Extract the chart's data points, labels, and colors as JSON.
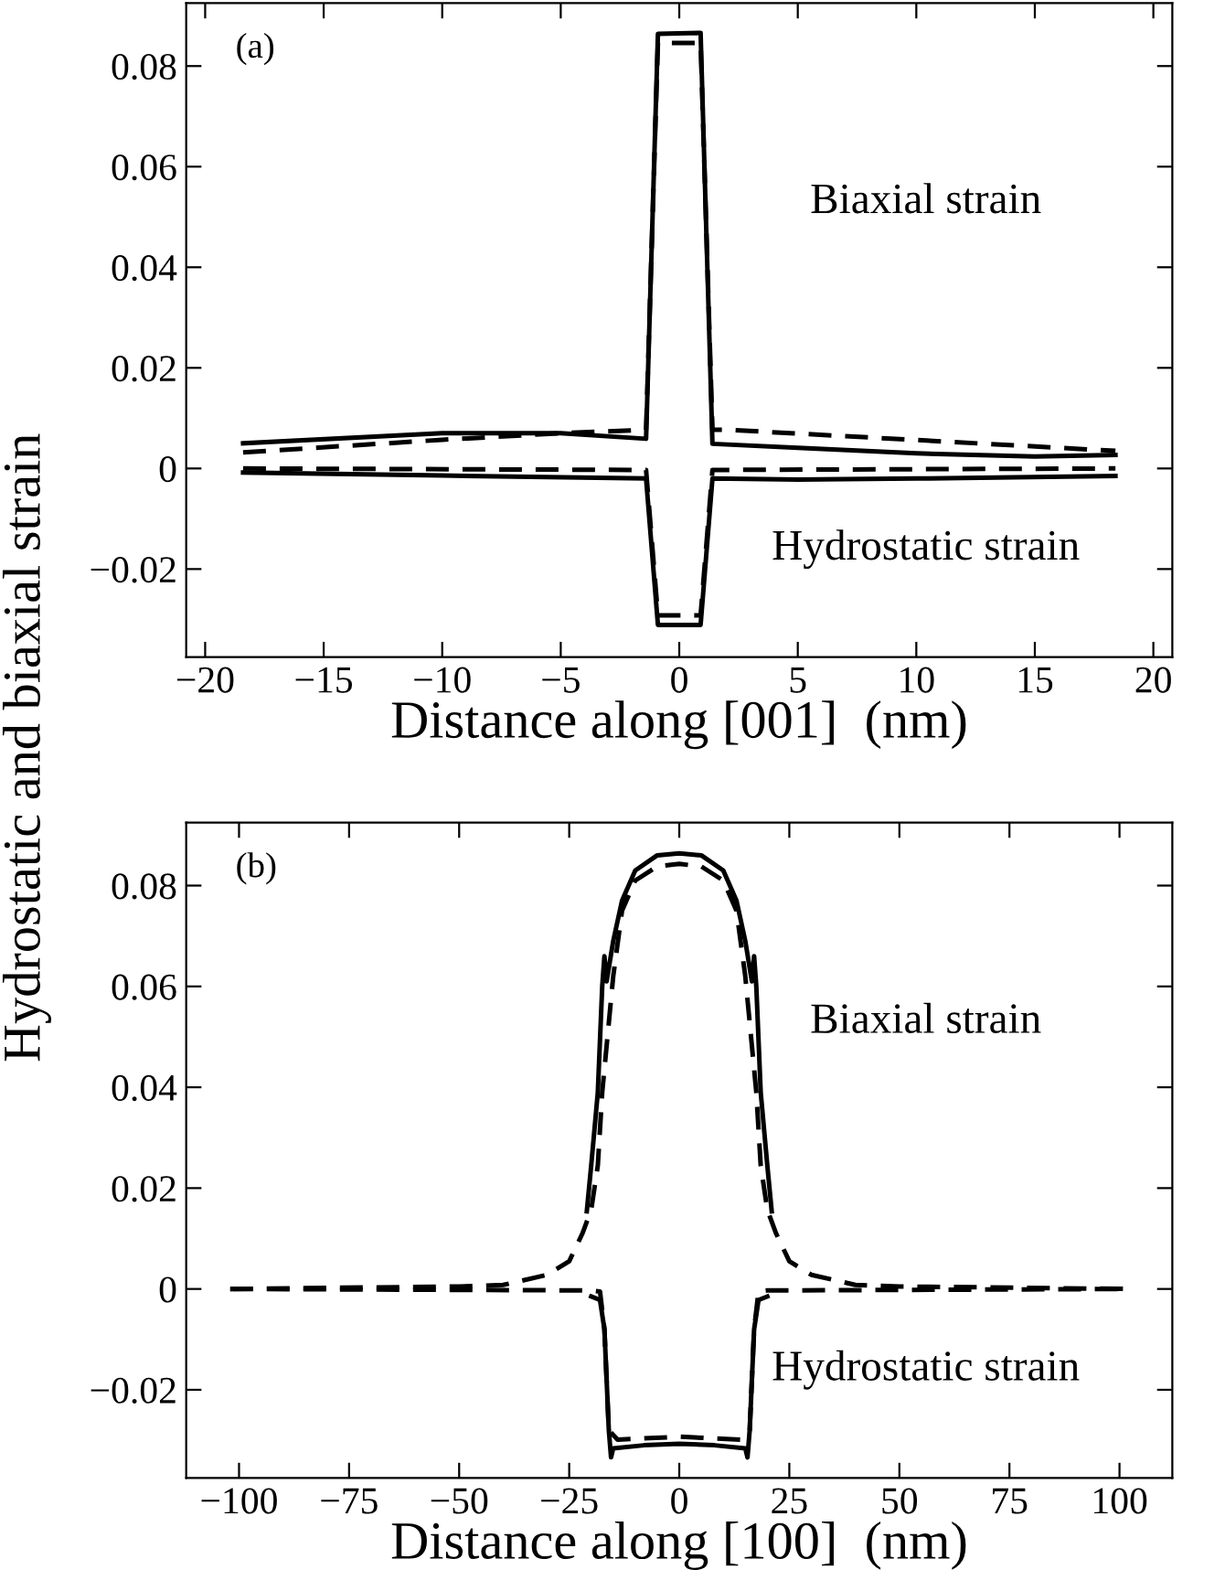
{
  "chart_data": [
    {
      "type": "line",
      "xlabel": "Distance along [001]  (nm)",
      "ylabel": "Hydrostatic and biaxial strain",
      "annotations": [
        "(a)",
        "Biaxial strain",
        "Hydrostatic strain"
      ],
      "xlim": [
        -20.8,
        20.8
      ],
      "ylim": [
        -0.0375,
        0.0925
      ],
      "xticks": [
        {
          "value": -20,
          "label": "−20"
        },
        {
          "value": -15,
          "label": "−15"
        },
        {
          "value": -10,
          "label": "−10"
        },
        {
          "value": -5,
          "label": "−5"
        },
        0,
        5,
        10,
        15,
        20
      ],
      "yticks": [
        {
          "value": -0.02,
          "label": "−0.02"
        },
        0,
        0.02,
        0.04,
        0.06,
        0.08
      ],
      "grid": false,
      "legend": false,
      "series": [
        {
          "color": "#000000",
          "line_style": "solid",
          "x": [
            -18.4,
            -10,
            -5,
            -1.4,
            -0.9,
            0.9,
            1.4,
            5,
            10,
            15,
            18.4
          ],
          "values": [
            0.005,
            0.007,
            0.007,
            0.0059,
            0.0864,
            0.0866,
            0.0049,
            0.0041,
            0.003,
            0.0024,
            0.0027
          ]
        },
        {
          "color": "#000000",
          "line_style": "dashed",
          "x": [
            -18.4,
            -10,
            -5,
            -1.4,
            -0.9,
            0.9,
            1.4,
            2,
            18.4
          ],
          "values": [
            0.0032,
            0.0057,
            0.007,
            0.0077,
            0.0846,
            0.0846,
            0.0077,
            0.0077,
            0.0035
          ]
        },
        {
          "color": "#000000",
          "line_style": "solid",
          "x": [
            -18.4,
            -10,
            -1.4,
            -0.9,
            0.9,
            1.4,
            5,
            10,
            18.4
          ],
          "values": [
            -0.0008,
            -0.0014,
            -0.002,
            -0.0311,
            -0.0311,
            -0.002,
            -0.0022,
            -0.002,
            -0.0015
          ]
        },
        {
          "color": "#000000",
          "line_style": "dashed",
          "x": [
            -18.4,
            -1.4,
            -0.9,
            0.9,
            1.4,
            18.4
          ],
          "values": [
            0,
            -0.0003,
            -0.0292,
            -0.0292,
            -0.0003,
            0
          ]
        }
      ]
    },
    {
      "type": "line",
      "xlabel": "Distance along [100]  (nm)",
      "annotations": [
        "(b)",
        "Biaxial strain",
        "Hydrostatic strain"
      ],
      "xlim": [
        -112,
        112
      ],
      "ylim": [
        -0.0375,
        0.0925
      ],
      "xticks": [
        {
          "value": -100,
          "label": "−100"
        },
        {
          "value": -75,
          "label": "−75"
        },
        {
          "value": -50,
          "label": "−50"
        },
        {
          "value": -25,
          "label": "−25"
        },
        0,
        25,
        50,
        75,
        100
      ],
      "yticks": [
        {
          "value": -0.02,
          "label": "−0.02"
        },
        0,
        0.02,
        0.04,
        0.06,
        0.08
      ],
      "grid": false,
      "legend": false,
      "series": [
        {
          "color": "#000000",
          "line_style": "solid",
          "x": [
            -21,
            -20,
            -18.5,
            -17.5,
            -17,
            -16.5,
            -15,
            -13,
            -10,
            -5,
            0,
            5,
            10,
            13,
            15,
            16.5,
            17,
            17.5,
            18.5,
            20,
            21
          ],
          "values": [
            0.0154,
            0.0245,
            0.039,
            0.06,
            0.066,
            0.061,
            0.069,
            0.077,
            0.083,
            0.086,
            0.0864,
            0.086,
            0.083,
            0.077,
            0.069,
            0.061,
            0.066,
            0.06,
            0.039,
            0.0245,
            0.0154
          ]
        },
        {
          "color": "#000000",
          "line_style": "dashed",
          "x": [
            -102,
            -50,
            -40,
            -30,
            -25,
            -22,
            -20,
            -18.5,
            -17.5,
            -15,
            -13,
            -10,
            -5,
            0,
            5,
            10,
            13,
            15,
            17.5,
            18.5,
            20,
            22,
            25,
            30,
            40,
            50,
            102
          ],
          "values": [
            0,
            0.0005,
            0.0008,
            0.0028,
            0.0055,
            0.011,
            0.0157,
            0.0245,
            0.039,
            0.062,
            0.075,
            0.081,
            0.0838,
            0.0843,
            0.0838,
            0.081,
            0.075,
            0.062,
            0.039,
            0.0245,
            0.0157,
            0.011,
            0.0055,
            0.0028,
            0.0008,
            0.0005,
            0
          ]
        },
        {
          "color": "#000000",
          "line_style": "solid",
          "x": [
            -20,
            -18,
            -17,
            -16,
            -15.5,
            -15,
            -8,
            0,
            8,
            15,
            15.5,
            16,
            17,
            18,
            20
          ],
          "values": [
            -0.0015,
            -0.0022,
            -0.008,
            -0.028,
            -0.0334,
            -0.0316,
            -0.031,
            -0.0307,
            -0.031,
            -0.0316,
            -0.0334,
            -0.028,
            -0.008,
            -0.0022,
            -0.0015
          ]
        },
        {
          "color": "#000000",
          "line_style": "dashed",
          "x": [
            -102,
            -20,
            -18,
            -17,
            -16,
            -14,
            0,
            14,
            16,
            17,
            18,
            20,
            102
          ],
          "values": [
            0,
            -0.0003,
            -0.0005,
            -0.008,
            -0.028,
            -0.0299,
            -0.0293,
            -0.0299,
            -0.028,
            -0.008,
            -0.0005,
            -0.0003,
            0
          ]
        }
      ]
    }
  ]
}
